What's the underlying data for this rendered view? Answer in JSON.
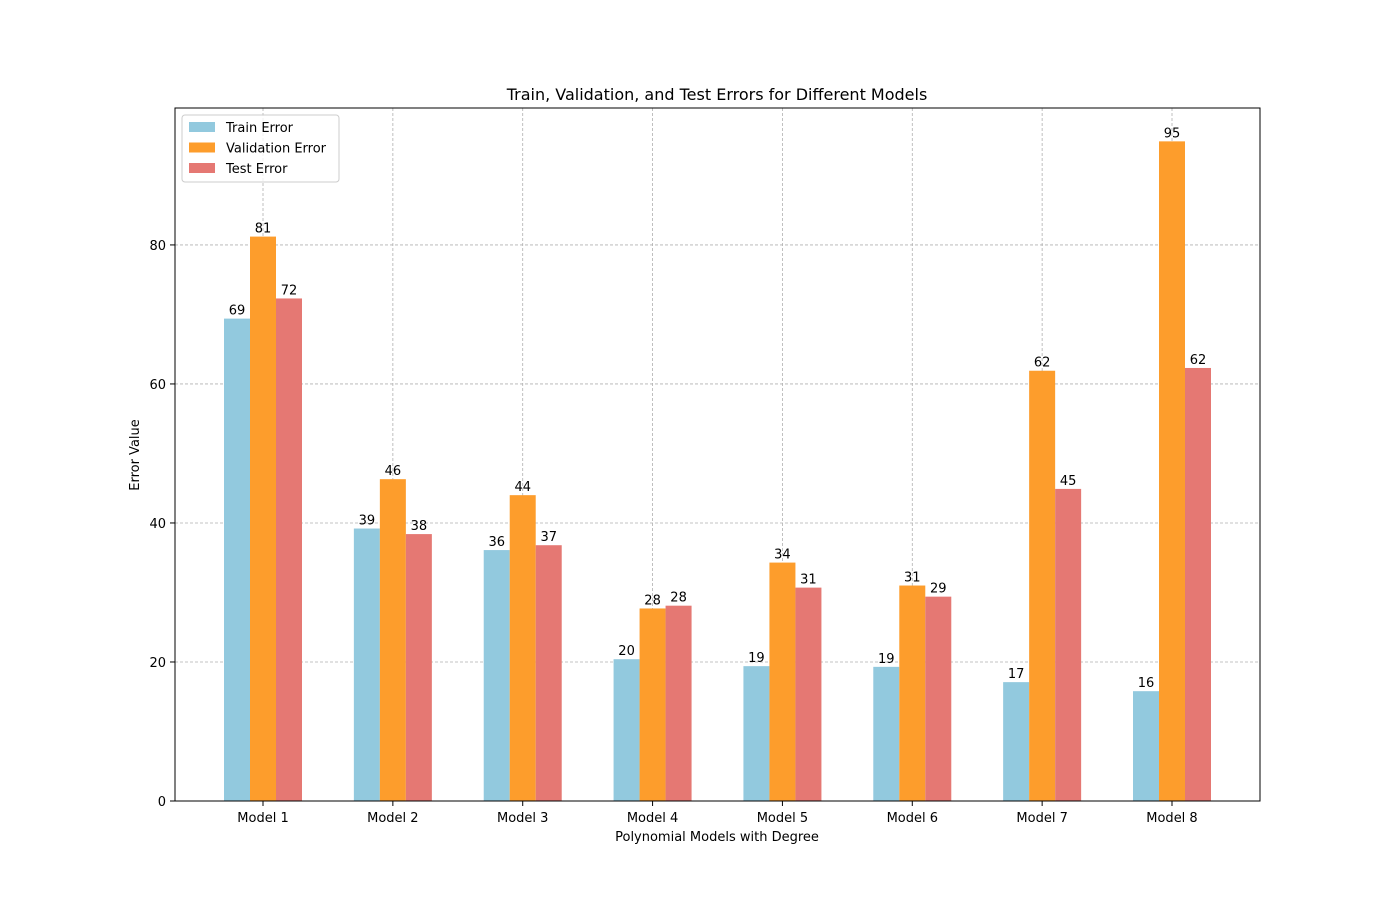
{
  "chart_data": {
    "type": "bar",
    "title": "Train, Validation, and Test Errors for Different Models",
    "xlabel": "Polynomial Models with Degree",
    "ylabel": "Error Value",
    "categories": [
      "Model 1",
      "Model 2",
      "Model 3",
      "Model 4",
      "Model 5",
      "Model 6",
      "Model 7",
      "Model 8"
    ],
    "ylim": [
      0,
      99.7
    ],
    "yticks": [
      "0",
      "20",
      "40",
      "60",
      "80"
    ],
    "grid": true,
    "legend_position": "top-left",
    "series": [
      {
        "name": "Train Error",
        "color": "#92c9de",
        "values": [
          69.4,
          39.2,
          36.1,
          20.4,
          19.4,
          19.3,
          17.1,
          15.8
        ],
        "labels": [
          "69",
          "39",
          "36",
          "20",
          "19",
          "19",
          "17",
          "16"
        ]
      },
      {
        "name": "Validation Error",
        "color": "#fd9d2c",
        "values": [
          81.2,
          46.3,
          44.0,
          27.7,
          34.3,
          31.0,
          61.9,
          94.9
        ],
        "labels": [
          "81",
          "46",
          "44",
          "28",
          "34",
          "31",
          "62",
          "95"
        ]
      },
      {
        "name": "Test Error",
        "color": "#e57873",
        "values": [
          72.3,
          38.4,
          36.8,
          28.1,
          30.7,
          29.4,
          44.9,
          62.3
        ],
        "labels": [
          "72",
          "38",
          "37",
          "28",
          "31",
          "29",
          "45",
          "62"
        ]
      }
    ]
  }
}
